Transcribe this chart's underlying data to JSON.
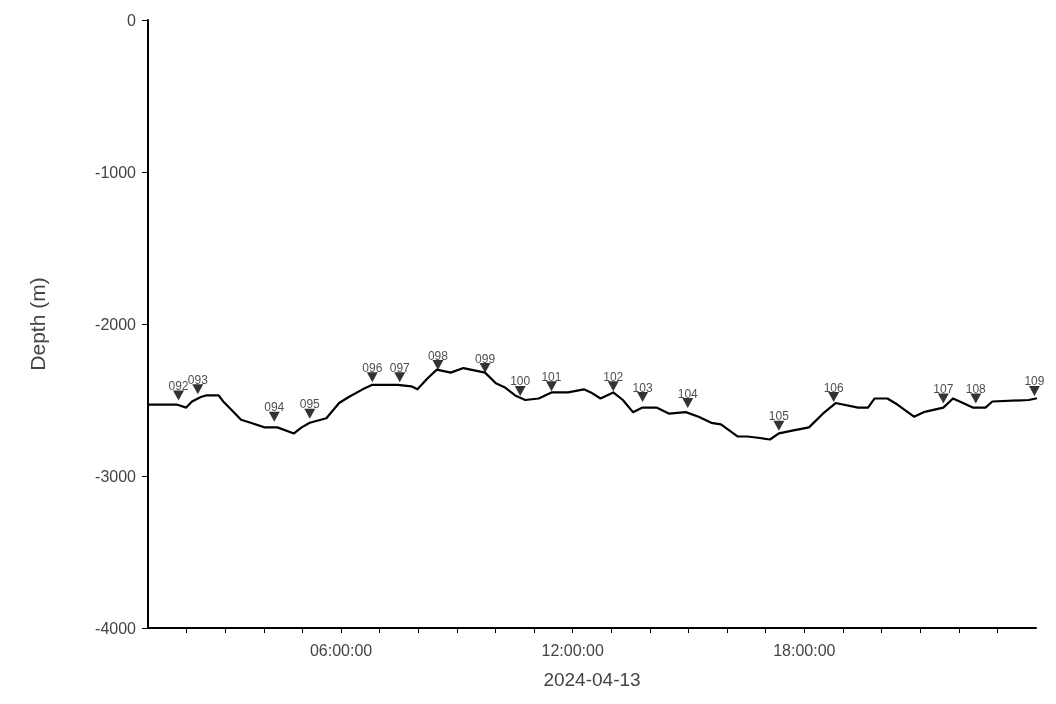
{
  "chart_data": {
    "type": "line",
    "xlabel": "2024-04-13",
    "ylabel": "Depth (m)",
    "xlim": [
      1,
      24
    ],
    "ylim": [
      -4000,
      0
    ],
    "xticks": [
      {
        "value": 2,
        "label": null
      },
      {
        "value": 3,
        "label": null
      },
      {
        "value": 4,
        "label": null
      },
      {
        "value": 5,
        "label": null
      },
      {
        "value": 6,
        "label": "06:00:00"
      },
      {
        "value": 7,
        "label": null
      },
      {
        "value": 8,
        "label": null
      },
      {
        "value": 9,
        "label": null
      },
      {
        "value": 10,
        "label": null
      },
      {
        "value": 11,
        "label": null
      },
      {
        "value": 12,
        "label": "12:00:00"
      },
      {
        "value": 13,
        "label": null
      },
      {
        "value": 14,
        "label": null
      },
      {
        "value": 15,
        "label": null
      },
      {
        "value": 16,
        "label": null
      },
      {
        "value": 17,
        "label": null
      },
      {
        "value": 18,
        "label": "18:00:00"
      },
      {
        "value": 19,
        "label": null
      },
      {
        "value": 20,
        "label": null
      },
      {
        "value": 21,
        "label": null
      },
      {
        "value": 22,
        "label": null
      },
      {
        "value": 23,
        "label": null
      }
    ],
    "yticks": [
      -4000,
      -3000,
      -2000,
      -1000,
      0
    ],
    "grid": false,
    "series": [
      {
        "color": "#000000",
        "marker": "none",
        "line_style": "solid",
        "x": [
          1.0,
          1.05,
          1.74,
          1.99,
          2.14,
          2.37,
          2.5,
          2.83,
          2.95,
          3.26,
          3.41,
          3.66,
          4.02,
          4.35,
          4.78,
          4.98,
          5.19,
          5.62,
          5.95,
          6.2,
          6.56,
          6.81,
          7.47,
          7.82,
          7.98,
          8.23,
          8.48,
          8.84,
          9.17,
          9.73,
          10.01,
          10.26,
          10.51,
          10.77,
          11.12,
          11.45,
          11.88,
          12.29,
          12.47,
          12.72,
          13.05,
          13.3,
          13.56,
          13.81,
          14.17,
          14.5,
          14.93,
          15.26,
          15.59,
          15.84,
          16.27,
          16.53,
          16.85,
          17.11,
          17.34,
          17.72,
          18.12,
          18.48,
          18.81,
          19.39,
          19.65,
          19.82,
          20.15,
          20.41,
          20.84,
          21.09,
          21.6,
          21.85,
          22.11,
          22.36,
          22.69,
          22.87,
          23.81,
          24.0
        ],
        "values": [
          -2530,
          -2530,
          -2530,
          -2550,
          -2510,
          -2480,
          -2470,
          -2470,
          -2510,
          -2590,
          -2630,
          -2650,
          -2680,
          -2680,
          -2720,
          -2680,
          -2650,
          -2620,
          -2520,
          -2480,
          -2430,
          -2400,
          -2400,
          -2410,
          -2430,
          -2360,
          -2300,
          -2320,
          -2290,
          -2320,
          -2390,
          -2420,
          -2470,
          -2500,
          -2490,
          -2450,
          -2450,
          -2430,
          -2450,
          -2490,
          -2450,
          -2500,
          -2580,
          -2550,
          -2550,
          -2590,
          -2580,
          -2610,
          -2650,
          -2660,
          -2740,
          -2740,
          -2750,
          -2760,
          -2720,
          -2700,
          -2680,
          -2590,
          -2520,
          -2550,
          -2550,
          -2490,
          -2490,
          -2530,
          -2610,
          -2580,
          -2550,
          -2490,
          -2520,
          -2550,
          -2550,
          -2510,
          -2500,
          -2490
        ]
      },
      {
        "type": "scatter",
        "color": "#000000",
        "marker": "triangle",
        "x": [
          1.79,
          2.29,
          4.27,
          5.19,
          6.81,
          7.52,
          8.51,
          9.73,
          10.64,
          11.45,
          13.05,
          13.81,
          14.98,
          17.34,
          18.76,
          21.6,
          22.44,
          23.96
        ],
        "values": [
          -2470,
          -2430,
          -2610,
          -2590,
          -2350,
          -2350,
          -2270,
          -2290,
          -2440,
          -2410,
          -2410,
          -2480,
          -2520,
          -2670,
          -2480,
          -2490,
          -2490,
          -2440
        ]
      }
    ],
    "annotations": [
      {
        "text": "092",
        "x": 1.79,
        "y": -2500
      },
      {
        "text": "093",
        "x": 2.29,
        "y": -2460
      },
      {
        "text": "094",
        "x": 4.27,
        "y": -2640
      },
      {
        "text": "095",
        "x": 5.19,
        "y": -2620
      },
      {
        "text": "096",
        "x": 6.81,
        "y": -2380
      },
      {
        "text": "097",
        "x": 7.52,
        "y": -2380
      },
      {
        "text": "098",
        "x": 8.51,
        "y": -2300
      },
      {
        "text": "099",
        "x": 9.73,
        "y": -2320
      },
      {
        "text": "100",
        "x": 10.64,
        "y": -2470
      },
      {
        "text": "101",
        "x": 11.45,
        "y": -2440
      },
      {
        "text": "102",
        "x": 13.05,
        "y": -2440
      },
      {
        "text": "103",
        "x": 13.81,
        "y": -2510
      },
      {
        "text": "104",
        "x": 14.98,
        "y": -2550
      },
      {
        "text": "105",
        "x": 17.34,
        "y": -2700
      },
      {
        "text": "106",
        "x": 18.76,
        "y": -2510
      },
      {
        "text": "107",
        "x": 21.6,
        "y": -2520
      },
      {
        "text": "108",
        "x": 22.44,
        "y": -2520
      },
      {
        "text": "109",
        "x": 23.96,
        "y": -2470
      }
    ]
  }
}
